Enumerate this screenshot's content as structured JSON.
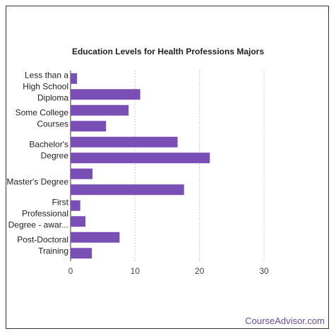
{
  "chart_data": {
    "type": "bar",
    "orientation": "horizontal",
    "title": "Education Levels for Health Professions Majors",
    "xlabel": "",
    "ylabel": "",
    "xlim": [
      0,
      30
    ],
    "x_ticks": [
      0,
      10,
      20,
      30
    ],
    "grid": true,
    "bar_color": "#7a4fb5",
    "categories": [
      "",
      "Less than a High School Diploma",
      "",
      "Some College Courses",
      "",
      "Bachelor's Degree",
      "",
      "Master's Degree",
      "",
      "First Professional Degree - awar...",
      "",
      "Post-Doctoral Training"
    ],
    "category_labels": [
      [
        "Less than a",
        "High School",
        "Diploma"
      ],
      [
        "Some College",
        "Courses"
      ],
      [
        "Bachelor's",
        "Degree"
      ],
      [
        "Master's Degree"
      ],
      [
        "First",
        "Professional",
        "Degree - awar..."
      ],
      [
        "Post-Doctoral",
        "Training"
      ]
    ],
    "values": [
      1.0,
      10.8,
      9.0,
      5.5,
      16.6,
      21.6,
      3.4,
      17.6,
      1.5,
      2.3,
      7.6,
      3.3
    ]
  },
  "branding": {
    "text": "CourseAdvisor.com"
  }
}
